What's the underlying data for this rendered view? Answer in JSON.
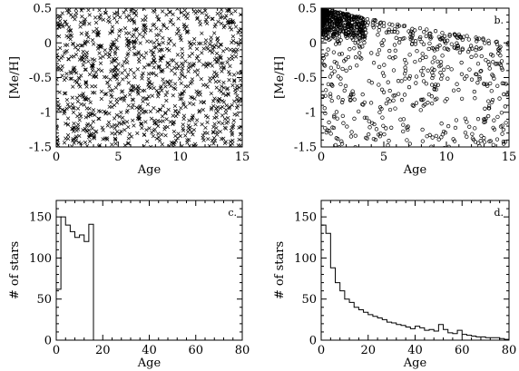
{
  "chart_data": [
    {
      "id": "a",
      "type": "scatter",
      "panel_label": "a.",
      "marker": "cross",
      "xlabel": "Age",
      "ylabel": "[Me/H]",
      "xlim": [
        0,
        15
      ],
      "ylim": [
        -1.5,
        0.5
      ],
      "xticks": [
        0,
        5,
        10,
        15
      ],
      "yticks": [
        -1.5,
        -1,
        -0.5,
        0,
        0.5
      ],
      "generator": {
        "n": 1100,
        "age_range": [
          0,
          15
        ],
        "feh_range": [
          -1.5,
          0.5
        ],
        "distribution": "uniform",
        "seed": 11
      }
    },
    {
      "id": "b",
      "type": "scatter",
      "panel_label": "b.",
      "marker": "star",
      "xlabel": "Age",
      "ylabel": "[Me/H]",
      "xlim": [
        0,
        15
      ],
      "ylim": [
        -1.5,
        0.5
      ],
      "xticks": [
        0,
        5,
        10,
        15
      ],
      "yticks": [
        -1.5,
        -1,
        -0.5,
        0,
        0.5
      ],
      "generator": {
        "n": 1000,
        "distribution": "age-metallicity relation",
        "upper_envelope": [
          [
            0,
            0.5
          ],
          [
            5,
            0.3
          ],
          [
            10,
            0.15
          ],
          [
            15,
            0.0
          ]
        ],
        "seed": 23
      }
    },
    {
      "id": "c",
      "type": "histogram",
      "panel_label": "c.",
      "xlabel": "Age",
      "ylabel": "# of stars",
      "xlim": [
        0,
        80
      ],
      "ylim": [
        0,
        170
      ],
      "xticks": [
        0,
        20,
        40,
        60,
        80
      ],
      "yticks": [
        0,
        50,
        100,
        150
      ],
      "bin_width": 2,
      "bin_left_edges": [
        0,
        2,
        4,
        6,
        8,
        10,
        12,
        14
      ],
      "counts": [
        62,
        150,
        140,
        132,
        125,
        128,
        120,
        141
      ]
    },
    {
      "id": "d",
      "type": "histogram",
      "panel_label": "d.",
      "xlabel": "Age",
      "ylabel": "# of stars",
      "xlim": [
        0,
        80
      ],
      "ylim": [
        0,
        170
      ],
      "xticks": [
        0,
        20,
        40,
        60,
        80
      ],
      "yticks": [
        0,
        50,
        100,
        150
      ],
      "bin_width": 2,
      "bin_left_edges": [
        0,
        2,
        4,
        6,
        8,
        10,
        12,
        14,
        16,
        18,
        20,
        22,
        24,
        26,
        28,
        30,
        32,
        34,
        36,
        38,
        40,
        42,
        44,
        46,
        48,
        50,
        52,
        54,
        56,
        58,
        60,
        62,
        64,
        66,
        68,
        70,
        72,
        74,
        76,
        78
      ],
      "counts": [
        140,
        130,
        88,
        70,
        60,
        50,
        46,
        40,
        37,
        34,
        31,
        29,
        27,
        25,
        22,
        21,
        19,
        18,
        16,
        14,
        17,
        15,
        12,
        13,
        11,
        19,
        13,
        9,
        8,
        12,
        7,
        6,
        5,
        4,
        4,
        3,
        3,
        3,
        2,
        1
      ]
    }
  ]
}
